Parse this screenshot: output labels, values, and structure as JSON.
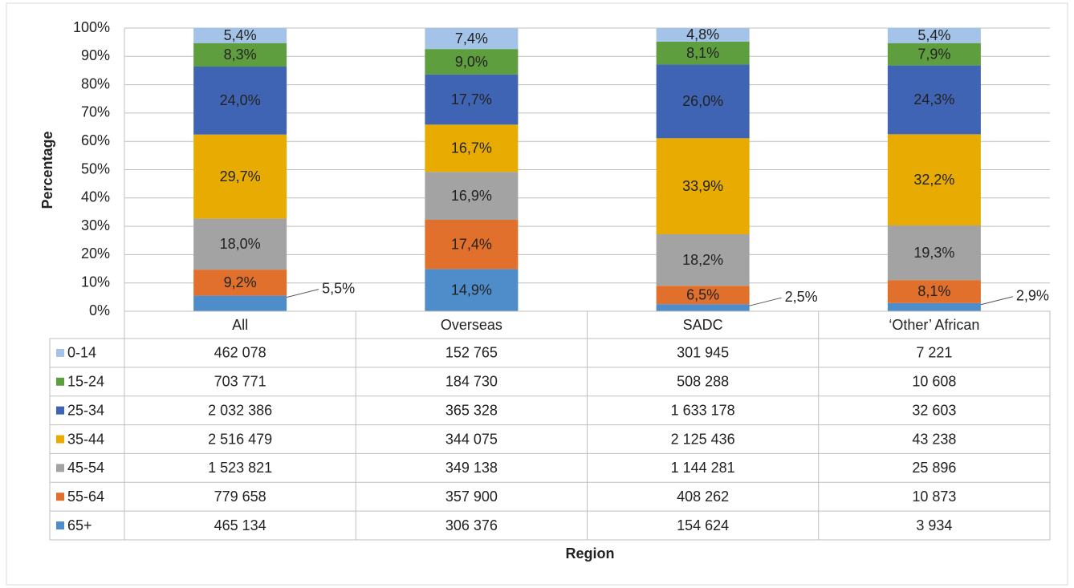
{
  "chart_data": {
    "type": "stacked_bar_100",
    "y_label": "Percentage",
    "x_label": "Region",
    "categories": [
      "All",
      "Overseas",
      "SADC",
      "‘Other’ African"
    ],
    "ylim": [
      0,
      100
    ],
    "yticks": [
      {
        "value": 0,
        "label": "0%"
      },
      {
        "value": 10,
        "label": "10%"
      },
      {
        "value": 20,
        "label": "20%"
      },
      {
        "value": 30,
        "label": "30%"
      },
      {
        "value": 40,
        "label": "40%"
      },
      {
        "value": 50,
        "label": "50%"
      },
      {
        "value": 60,
        "label": "60%"
      },
      {
        "value": 70,
        "label": "70%"
      },
      {
        "value": 80,
        "label": "80%"
      },
      {
        "value": 90,
        "label": "90%"
      },
      {
        "value": 100,
        "label": "100%"
      }
    ],
    "grid": true,
    "series": [
      {
        "name": "65+",
        "color": "#4e8dc9",
        "values": [
          5.5,
          14.9,
          2.5,
          2.9
        ],
        "value_labels": [
          "5,5%",
          "14,9%",
          "2,5%",
          "2,9%"
        ],
        "table_values": [
          "465 134",
          "306 376",
          "154 624",
          "3 934"
        ]
      },
      {
        "name": "55-64",
        "color": "#e0702b",
        "values": [
          9.2,
          17.4,
          6.5,
          8.1
        ],
        "value_labels": [
          "9,2%",
          "17,4%",
          "6,5%",
          "8,1%"
        ],
        "table_values": [
          "779 658",
          "357 900",
          "408 262",
          "10 873"
        ]
      },
      {
        "name": "45-54",
        "color": "#a3a3a3",
        "values": [
          18.0,
          16.9,
          18.2,
          19.3
        ],
        "value_labels": [
          "18,0%",
          "16,9%",
          "18,2%",
          "19,3%"
        ],
        "table_values": [
          "1 523 821",
          "349 138",
          "1 144 281",
          "25 896"
        ]
      },
      {
        "name": "35-44",
        "color": "#e8ab02",
        "values": [
          29.7,
          16.7,
          33.9,
          32.2
        ],
        "value_labels": [
          "29,7%",
          "16,7%",
          "33,9%",
          "32,2%"
        ],
        "table_values": [
          "2 516 479",
          "344 075",
          "2 125 436",
          "43 238"
        ]
      },
      {
        "name": "25-34",
        "color": "#3f64b4",
        "values": [
          24.0,
          17.7,
          26.0,
          24.3
        ],
        "value_labels": [
          "24,0%",
          "17,7%",
          "26,0%",
          "24,3%"
        ],
        "table_values": [
          "2 032 386",
          "365 328",
          "1 633 178",
          "32 603"
        ]
      },
      {
        "name": "15-24",
        "color": "#5f9e3e",
        "values": [
          8.3,
          9.0,
          8.1,
          7.9
        ],
        "value_labels": [
          "8,3%",
          "9,0%",
          "8,1%",
          "7,9%"
        ],
        "table_values": [
          "703 771",
          "184 730",
          "508 288",
          "10 608"
        ]
      },
      {
        "name": "0-14",
        "color": "#a3c4e8",
        "values": [
          5.4,
          7.4,
          4.8,
          5.4
        ],
        "value_labels": [
          "5,4%",
          "7,4%",
          "4,8%",
          "5,4%"
        ],
        "table_values": [
          "462 078",
          "152 765",
          "301 945",
          "7 221"
        ]
      }
    ]
  }
}
